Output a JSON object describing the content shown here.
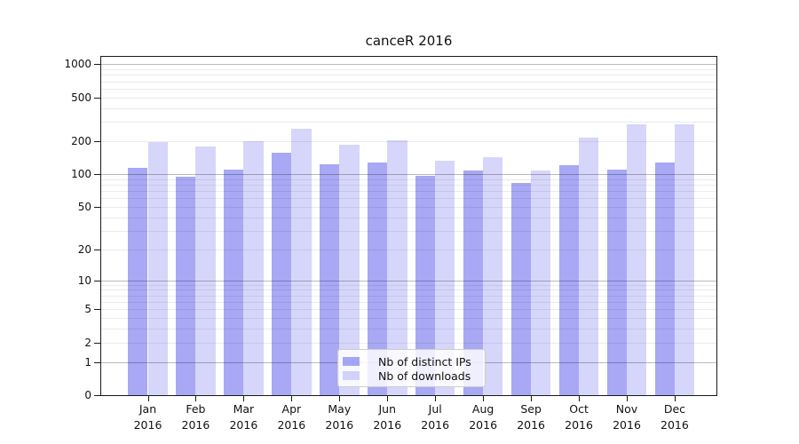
{
  "chart_data": {
    "type": "bar",
    "title": "canceR 2016",
    "categories": [
      "Jan",
      "Feb",
      "Mar",
      "Apr",
      "May",
      "Jun",
      "Jul",
      "Aug",
      "Sep",
      "Oct",
      "Nov",
      "Dec"
    ],
    "category_year": "2016",
    "series": [
      {
        "name": "Nb of distinct IPs",
        "values": [
          115,
          95,
          109,
          158,
          123,
          128,
          97,
          108,
          83,
          121,
          109,
          128
        ]
      },
      {
        "name": "Nb of downloads",
        "values": [
          196,
          180,
          200,
          258,
          184,
          204,
          133,
          142,
          108,
          215,
          285,
          285
        ]
      }
    ],
    "xlabel": "",
    "ylabel": "",
    "yscale": "log1p",
    "yticks": [
      0,
      1,
      2,
      5,
      10,
      20,
      50,
      100,
      200,
      500,
      1000
    ],
    "ylim": [
      0,
      1190
    ],
    "grid": "horizontal, major and minor, drawn over bars",
    "legend_position": "lower center inside plot",
    "colors": {
      "bar_base": "#6666ee",
      "series_alpha": [
        0.57,
        0.27
      ],
      "series_rgba": [
        "rgba(102,102,238,0.57)",
        "rgba(102,102,238,0.27)"
      ],
      "major_grid": "rgba(0,0,0,0.27)",
      "minor_grid": "rgba(0,0,0,0.08)",
      "spine": "#1a1a1a",
      "text": "#111111",
      "background": "#ffffff"
    }
  }
}
